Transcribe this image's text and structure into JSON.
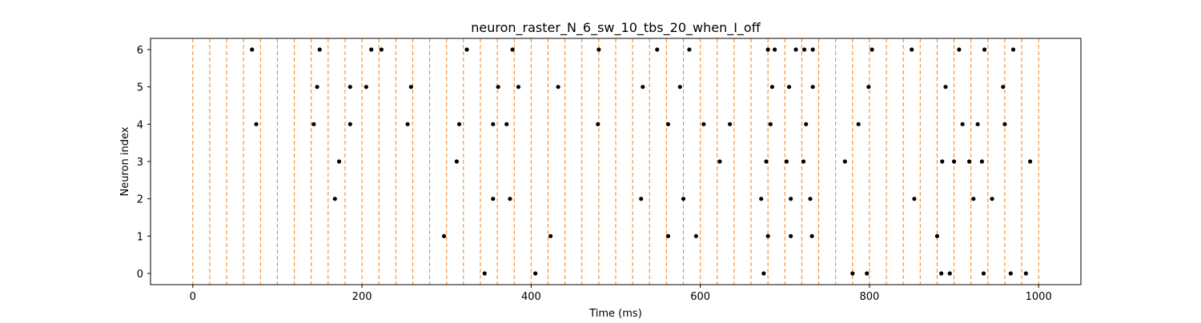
{
  "chart_data": {
    "type": "scatter",
    "title": "neuron_raster_N_6_sw_10_tbs_20_when_I_off",
    "xlabel": "Time (ms)",
    "ylabel": "Neuron index",
    "xlim": [
      -50,
      1050
    ],
    "ylim": [
      -0.3,
      6.3
    ],
    "xticks": [
      0,
      200,
      400,
      600,
      800,
      1000
    ],
    "yticks": [
      0,
      1,
      2,
      3,
      4,
      5,
      6
    ],
    "xtick_labels": [
      "0",
      "200",
      "400",
      "600",
      "800",
      "1000"
    ],
    "ytick_labels": [
      "0",
      "1",
      "2",
      "3",
      "4",
      "5",
      "6"
    ],
    "grid": false,
    "vertical_markers": {
      "style": "dashed",
      "color": "#ff7f0e",
      "x": [
        0,
        20,
        40,
        60,
        80,
        100,
        120,
        140,
        160,
        180,
        200,
        220,
        240,
        260,
        280,
        300,
        320,
        340,
        360,
        380,
        400,
        420,
        440,
        460,
        480,
        500,
        520,
        540,
        560,
        580,
        600,
        620,
        640,
        660,
        680,
        700,
        720,
        740,
        760,
        780,
        800,
        820,
        840,
        860,
        880,
        900,
        920,
        940,
        960,
        980,
        1000
      ]
    },
    "spike_color": "#000000",
    "series": [
      {
        "neuron": 0,
        "times": [
          345,
          405,
          675,
          780,
          797,
          885,
          895,
          935,
          967,
          985
        ]
      },
      {
        "neuron": 1,
        "times": [
          297,
          423,
          562,
          595,
          680,
          707,
          732,
          880
        ]
      },
      {
        "neuron": 2,
        "times": [
          168,
          355,
          375,
          530,
          580,
          672,
          707,
          730,
          853,
          923,
          945
        ]
      },
      {
        "neuron": 3,
        "times": [
          173,
          312,
          623,
          678,
          702,
          722,
          771,
          886,
          900,
          918,
          933,
          990
        ]
      },
      {
        "neuron": 4,
        "times": [
          75,
          143,
          186,
          254,
          315,
          355,
          371,
          479,
          562,
          604,
          635,
          683,
          725,
          787,
          910,
          928,
          960
        ]
      },
      {
        "neuron": 5,
        "times": [
          147,
          186,
          205,
          258,
          361,
          385,
          432,
          532,
          576,
          685,
          705,
          733,
          799,
          890,
          958
        ]
      },
      {
        "neuron": 6,
        "times": [
          70,
          150,
          211,
          223,
          324,
          378,
          480,
          549,
          587,
          680,
          688,
          713,
          723,
          733,
          803,
          850,
          906,
          936,
          970
        ]
      }
    ]
  }
}
